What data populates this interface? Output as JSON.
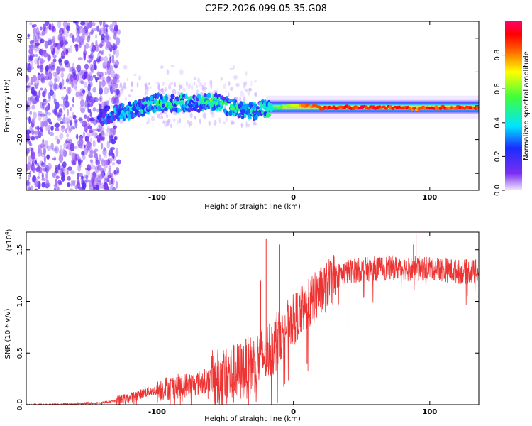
{
  "title": "C2E2.2026.099.05.35.G08",
  "chart_data": [
    {
      "type": "heatmap",
      "title": "C2E2.2026.099.05.35.G08",
      "xlabel": "Height of straight line (km)",
      "ylabel": "Frequency (Hz)",
      "xlim": [
        -196,
        136
      ],
      "ylim": [
        -50,
        50
      ],
      "xticks": [
        -100,
        0,
        100
      ],
      "yticks": [
        -40,
        -20,
        0,
        20,
        40
      ],
      "xtick_labels": [
        "-100",
        "0",
        "100"
      ],
      "ytick_labels": [
        "-40",
        "-20",
        "0",
        "20",
        "40"
      ],
      "noise_region_x": [
        -196,
        -136
      ],
      "trace": [
        {
          "x": -140,
          "f": -6,
          "amp": 0.25
        },
        {
          "x": -130,
          "f": -4,
          "amp": 0.3
        },
        {
          "x": -120,
          "f": -3,
          "amp": 0.35
        },
        {
          "x": -110,
          "f": -1,
          "amp": 0.35
        },
        {
          "x": -100,
          "f": 2,
          "amp": 0.4
        },
        {
          "x": -90,
          "f": 1,
          "amp": 0.4
        },
        {
          "x": -80,
          "f": 2,
          "amp": 0.4
        },
        {
          "x": -70,
          "f": 1,
          "amp": 0.4
        },
        {
          "x": -60,
          "f": 3,
          "amp": 0.45
        },
        {
          "x": -50,
          "f": 0,
          "amp": 0.4
        },
        {
          "x": -40,
          "f": -2,
          "amp": 0.4
        },
        {
          "x": -30,
          "f": -3,
          "amp": 0.35
        },
        {
          "x": -20,
          "f": -2,
          "amp": 0.45
        },
        {
          "x": -10,
          "f": -1,
          "amp": 0.6
        },
        {
          "x": 0,
          "f": 0,
          "amp": 0.75
        },
        {
          "x": 10,
          "f": 0,
          "amp": 0.85
        },
        {
          "x": 20,
          "f": -1,
          "amp": 0.95
        },
        {
          "x": 50,
          "f": -1,
          "amp": 1.0
        },
        {
          "x": 80,
          "f": -1,
          "amp": 0.95
        },
        {
          "x": 90,
          "f": -2,
          "amp": 0.9
        },
        {
          "x": 100,
          "f": -1,
          "amp": 0.95
        },
        {
          "x": 136,
          "f": -1,
          "amp": 0.95
        }
      ],
      "colorbar": {
        "label": "Normalized spectral amplitude",
        "range": [
          0,
          1
        ],
        "ticks": [
          0.0,
          0.2,
          0.4,
          0.6,
          0.8
        ],
        "tick_labels": [
          "0.0",
          "0.2",
          "0.4",
          "0.6",
          "0.8"
        ]
      }
    },
    {
      "type": "line",
      "xlabel": "Height of straight line (km)",
      "ylabel": "SNR (10 * v/v)",
      "scale_label": "(x10^4)",
      "scale_base": "(x10",
      "scale_exp": "4",
      "scale_end": ")",
      "xlim": [
        -196,
        136
      ],
      "ylim": [
        0,
        1.67
      ],
      "xticks": [
        -100,
        0,
        100
      ],
      "yticks": [
        0.0,
        0.5,
        1.0,
        1.5
      ],
      "xtick_labels": [
        "-100",
        "0",
        "100"
      ],
      "ytick_labels": [
        "0.0",
        "0.5",
        "1.0",
        "1.5"
      ],
      "series": [
        {
          "name": "SNR",
          "color": "#ee3333",
          "x": [
            -196,
            -180,
            -160,
            -140,
            -130,
            -120,
            -110,
            -100,
            -90,
            -80,
            -70,
            -60,
            -50,
            -40,
            -30,
            -20,
            -15,
            -10,
            -5,
            0,
            5,
            10,
            15,
            20,
            25,
            30,
            40,
            50,
            60,
            70,
            80,
            90,
            100,
            110,
            120,
            136
          ],
          "y": [
            0.0,
            0.0,
            0.01,
            0.02,
            0.04,
            0.07,
            0.12,
            0.15,
            0.18,
            0.2,
            0.22,
            0.26,
            0.3,
            0.34,
            0.42,
            0.52,
            0.6,
            0.7,
            0.78,
            0.85,
            0.92,
            0.98,
            1.05,
            1.12,
            1.18,
            1.25,
            1.3,
            1.32,
            1.33,
            1.34,
            1.33,
            1.33,
            1.34,
            1.32,
            1.3,
            1.3
          ]
        }
      ],
      "spikes": [
        {
          "x": -20,
          "y": 1.61
        },
        {
          "x": -10,
          "y": 1.55
        },
        {
          "x": 90,
          "y": 1.66
        },
        {
          "x": 88,
          "y": 1.55
        },
        {
          "x": -24,
          "y": 1.2
        },
        {
          "x": 40,
          "y": 0.78
        },
        {
          "x": 10,
          "y": 0.4
        }
      ]
    }
  ],
  "colors": {
    "snr_line": "#ee3333",
    "frame": "#000000"
  }
}
